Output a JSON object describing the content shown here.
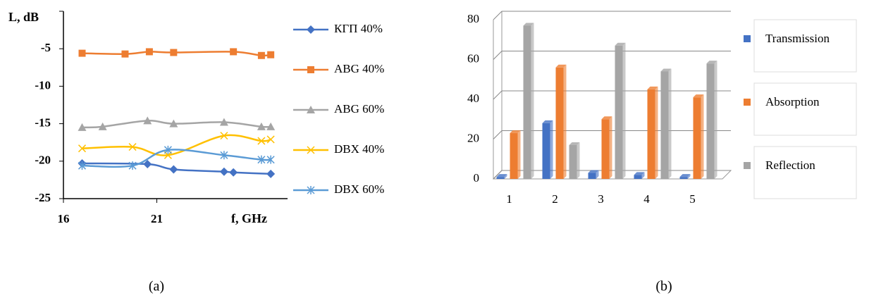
{
  "chart_data": [
    {
      "type": "line",
      "ylabel": "L, dB",
      "xlabel": "f, GHz",
      "xlim": [
        16,
        28
      ],
      "xticks": [
        16,
        21
      ],
      "ylim": [
        -25,
        0
      ],
      "yticks": [
        -25,
        -20,
        -15,
        -10,
        -5
      ],
      "smooth": true,
      "series": [
        {
          "name": "КГП 40%",
          "color": "#4472c4",
          "marker": "diamond",
          "x": [
            17,
            20.5,
            21.9,
            24.6,
            25.1,
            27.1
          ],
          "values": [
            -20.3,
            -20.4,
            -21.1,
            -21.4,
            -21.5,
            -21.7
          ]
        },
        {
          "name": "ABG 40%",
          "color": "#ed7d31",
          "marker": "square",
          "x": [
            17,
            19.3,
            20.6,
            21.9,
            25.1,
            26.6,
            27.1
          ],
          "values": [
            -5.6,
            -5.7,
            -5.4,
            -5.5,
            -5.4,
            -5.9,
            -5.8
          ]
        },
        {
          "name": "ABG 60%",
          "color": "#a5a5a5",
          "marker": "triangle",
          "x": [
            17,
            18.1,
            20.5,
            21.9,
            24.6,
            26.6,
            27.1
          ],
          "values": [
            -15.5,
            -15.4,
            -14.6,
            -15.0,
            -14.8,
            -15.4,
            -15.4
          ]
        },
        {
          "name": "DBX 40%",
          "color": "#ffc000",
          "marker": "x",
          "x": [
            17,
            19.7,
            21.6,
            24.6,
            26.6,
            27.1
          ],
          "values": [
            -18.3,
            -18.1,
            -19.2,
            -16.6,
            -17.3,
            -17.1
          ]
        },
        {
          "name": "DBX 60%",
          "color": "#5b9bd5",
          "marker": "star",
          "x": [
            17,
            19.7,
            21.6,
            24.6,
            26.6,
            27.1
          ],
          "values": [
            -20.6,
            -20.6,
            -18.5,
            -19.2,
            -19.8,
            -19.8
          ]
        }
      ],
      "caption": "(a)"
    },
    {
      "type": "bar",
      "categories": [
        "1",
        "2",
        "3",
        "4",
        "5"
      ],
      "ylim": [
        0,
        80
      ],
      "yticks": [
        0,
        20,
        40,
        60,
        80
      ],
      "grid": true,
      "series": [
        {
          "name": "Transmission",
          "color": "#4472c4",
          "values": [
            1,
            28,
            3,
            2,
            1
          ]
        },
        {
          "name": "Absorption",
          "color": "#ed7d31",
          "values": [
            23,
            56,
            30,
            45,
            41
          ]
        },
        {
          "name": "Reflection",
          "color": "#a5a5a5",
          "values": [
            77,
            17,
            67,
            54,
            58
          ]
        }
      ],
      "caption": "(b)"
    }
  ]
}
